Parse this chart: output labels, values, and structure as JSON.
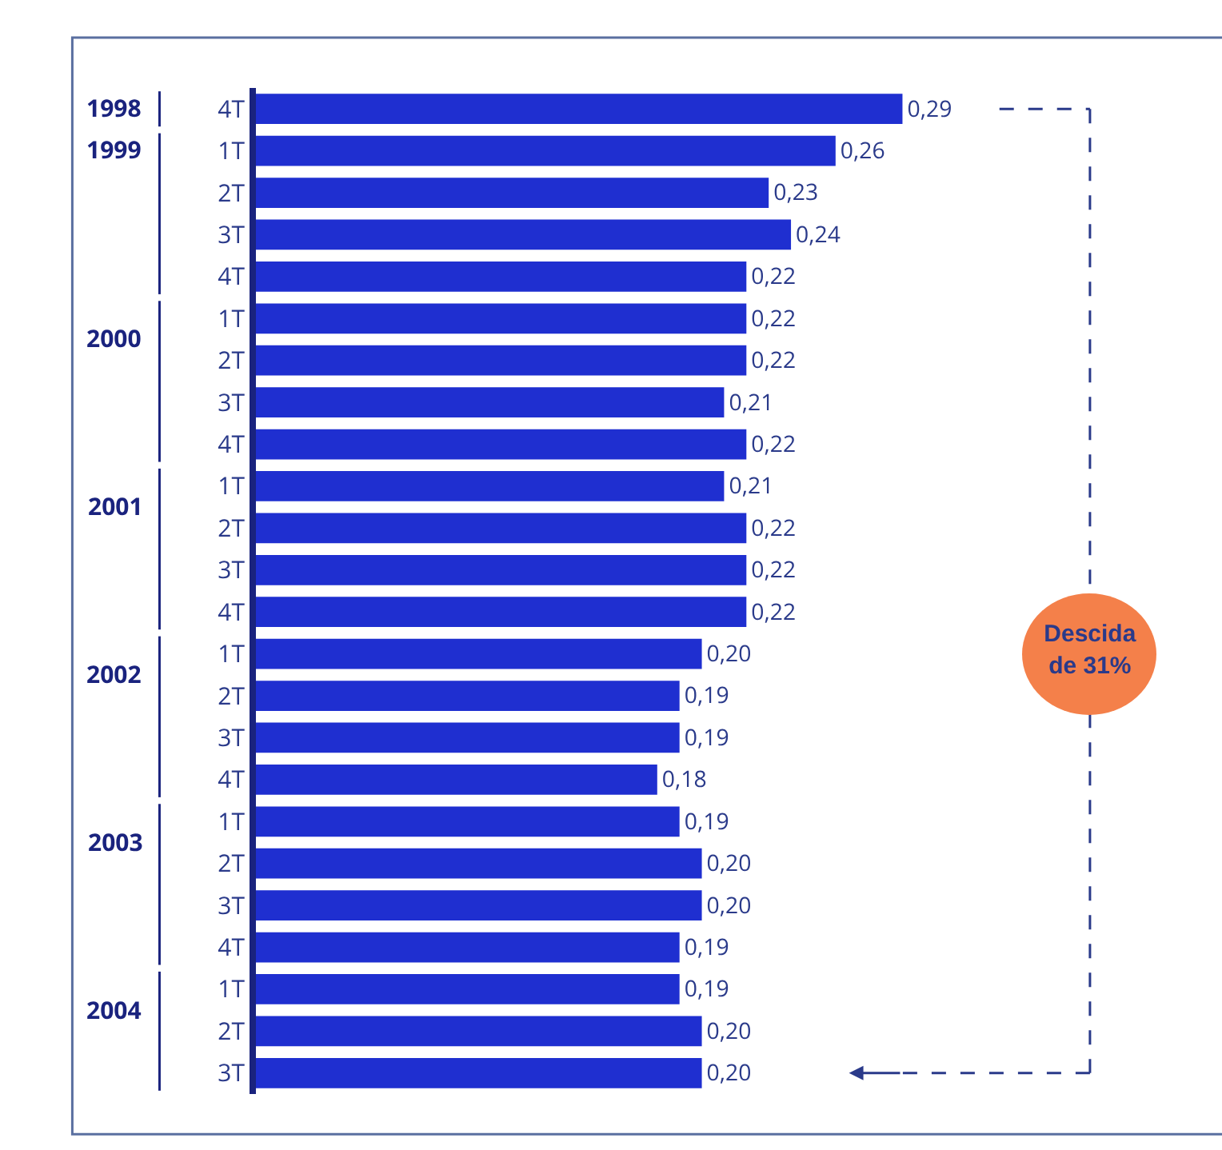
{
  "chart_data": {
    "type": "bar",
    "orientation": "horizontal",
    "categories": [
      "4T",
      "1T",
      "2T",
      "3T",
      "4T",
      "1T",
      "2T",
      "3T",
      "4T",
      "1T",
      "2T",
      "3T",
      "4T",
      "1T",
      "2T",
      "3T",
      "4T",
      "1T",
      "2T",
      "3T",
      "4T",
      "1T",
      "2T",
      "3T"
    ],
    "values": [
      0.29,
      0.26,
      0.23,
      0.24,
      0.22,
      0.22,
      0.22,
      0.21,
      0.22,
      0.21,
      0.22,
      0.22,
      0.22,
      0.2,
      0.19,
      0.19,
      0.18,
      0.19,
      0.2,
      0.2,
      0.19,
      0.19,
      0.2,
      0.2
    ],
    "value_labels": [
      "0,29",
      "0,26",
      "0,23",
      "0,24",
      "0,22",
      "0,22",
      "0,22",
      "0,21",
      "0,22",
      "0,21",
      "0,22",
      "0,22",
      "0,22",
      "0,20",
      "0,19",
      "0,19",
      "0,18",
      "0,19",
      "0,20",
      "0,20",
      "0,19",
      "0,19",
      "0,20",
      "0,20"
    ],
    "color": "#1f2fd0",
    "annotations": [
      "1998",
      "1999",
      "2000",
      "2001",
      "2002",
      "2003",
      "2004",
      "Descida de 31%"
    ],
    "legend": false
  }
}
